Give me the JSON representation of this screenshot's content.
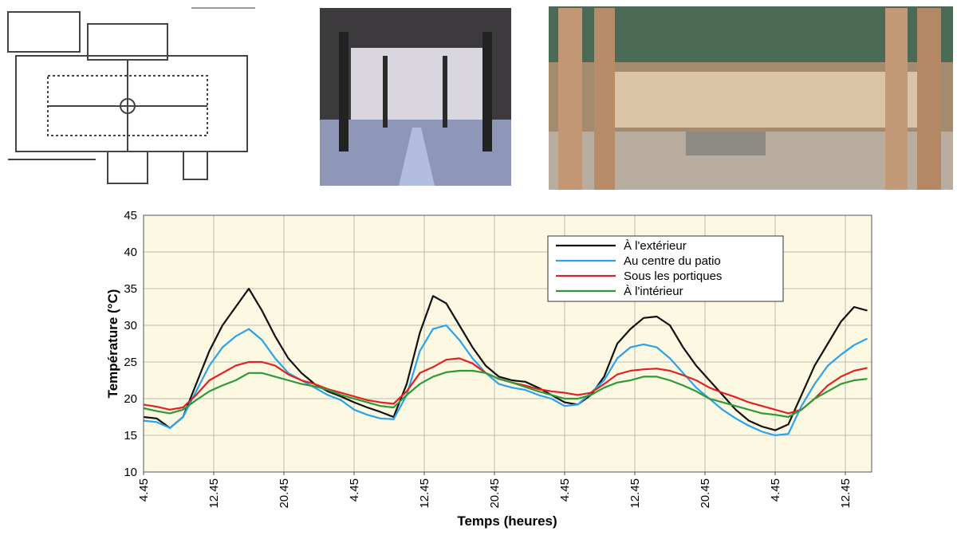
{
  "chart_data": {
    "type": "line",
    "y_label": "Température (°C)",
    "x_label": "Temps (heures)",
    "x": [
      0,
      1.5,
      3,
      4.5,
      6,
      7.5,
      9,
      10.5,
      12,
      13.5,
      15,
      16.5,
      18,
      19.5,
      21,
      22.5,
      24,
      25.5,
      27,
      28.5,
      30,
      31.5,
      33,
      34.5,
      36,
      37.5,
      39,
      40.5,
      42,
      43.5,
      45,
      46.5,
      48,
      49.5,
      51,
      52.5,
      54,
      55.5,
      57,
      58.5,
      60,
      61.5,
      63,
      64.5,
      66,
      67.5,
      69,
      70.5,
      72,
      73.5,
      75,
      76.5,
      78,
      79.5,
      81,
      82.5
    ],
    "series": [
      {
        "name": "À l'extérieur",
        "color": "#111111",
        "values": [
          17.5,
          17.3,
          16,
          17.5,
          22,
          26.5,
          30,
          32.5,
          35,
          32,
          28.5,
          25.5,
          23.5,
          22,
          21,
          20.3,
          19.5,
          18.8,
          18.2,
          17.5,
          22,
          29,
          34,
          33,
          30,
          27,
          24.5,
          23,
          22.5,
          22.3,
          21.5,
          20.5,
          19.5,
          19.2,
          20.5,
          23,
          27.5,
          29.5,
          31,
          31.2,
          30,
          27,
          24.5,
          22.5,
          20.5,
          18.5,
          17,
          16.2,
          15.7,
          16.5,
          20.5,
          24.5,
          27.5,
          30.5,
          32.5,
          32
        ]
      },
      {
        "name": "Au centre du patio",
        "color": "#2aa3ea",
        "values": [
          17,
          16.8,
          16,
          17.5,
          21,
          24.5,
          27,
          28.5,
          29.5,
          28,
          25.5,
          23.5,
          22.5,
          21.5,
          20.5,
          19.8,
          18.5,
          17.8,
          17.3,
          17.2,
          20.5,
          26.5,
          29.5,
          30,
          28,
          25.5,
          23.5,
          22,
          21.5,
          21.2,
          20.5,
          20,
          19,
          19.2,
          20.8,
          22.5,
          25.5,
          27,
          27.4,
          27,
          25.5,
          23.5,
          21.5,
          20,
          18.5,
          17.3,
          16.3,
          15.5,
          15,
          15.2,
          19,
          22,
          24.5,
          26,
          27.3,
          28.2
        ]
      },
      {
        "name": "Sous les portiques",
        "color": "#e02222",
        "values": [
          19.2,
          18.9,
          18.5,
          18.8,
          20.5,
          22.5,
          23.5,
          24.5,
          25,
          25,
          24.5,
          23.3,
          22.5,
          22,
          21.3,
          20.8,
          20.3,
          19.8,
          19.5,
          19.3,
          21,
          23.5,
          24.3,
          25.3,
          25.5,
          24.8,
          23.5,
          22.7,
          22.2,
          21.8,
          21.3,
          21,
          20.8,
          20.5,
          20.8,
          22,
          23.3,
          23.8,
          24,
          24.1,
          23.8,
          23.2,
          22.5,
          21.5,
          20.8,
          20.2,
          19.5,
          19,
          18.5,
          18,
          18.5,
          20,
          21.8,
          23,
          23.8,
          24.2
        ]
      },
      {
        "name": "À l'intérieur",
        "color": "#2e9a35",
        "values": [
          18.7,
          18.3,
          18,
          18.5,
          19.8,
          21,
          21.8,
          22.5,
          23.5,
          23.5,
          23,
          22.5,
          22,
          21.7,
          21.2,
          20.5,
          20,
          19.5,
          19,
          18.8,
          20.5,
          22,
          23,
          23.6,
          23.8,
          23.8,
          23.5,
          22.7,
          22.2,
          21.6,
          21,
          20.5,
          20,
          20,
          20.5,
          21.5,
          22.2,
          22.5,
          23,
          23,
          22.5,
          21.8,
          21,
          20,
          19.5,
          19,
          18.5,
          18,
          17.8,
          17.5,
          18.5,
          20,
          21,
          22,
          22.5,
          22.7
        ]
      }
    ],
    "xlim": [
      0,
      83
    ],
    "xticks": [
      {
        "value": 0,
        "label": "4.45"
      },
      {
        "value": 8,
        "label": "12.45"
      },
      {
        "value": 16,
        "label": "20.45"
      },
      {
        "value": 24,
        "label": "4.45"
      },
      {
        "value": 32,
        "label": "12.45"
      },
      {
        "value": 40,
        "label": "20.45"
      },
      {
        "value": 48,
        "label": "4.45"
      },
      {
        "value": 56,
        "label": "12.45"
      },
      {
        "value": 64,
        "label": "20.45"
      },
      {
        "value": 72,
        "label": "4.45"
      },
      {
        "value": 80,
        "label": "12.45"
      }
    ],
    "ylim": [
      10,
      45
    ],
    "yticks": [
      10,
      15,
      20,
      25,
      30,
      35,
      40,
      45
    ],
    "grid": true,
    "legend": "top-right"
  }
}
